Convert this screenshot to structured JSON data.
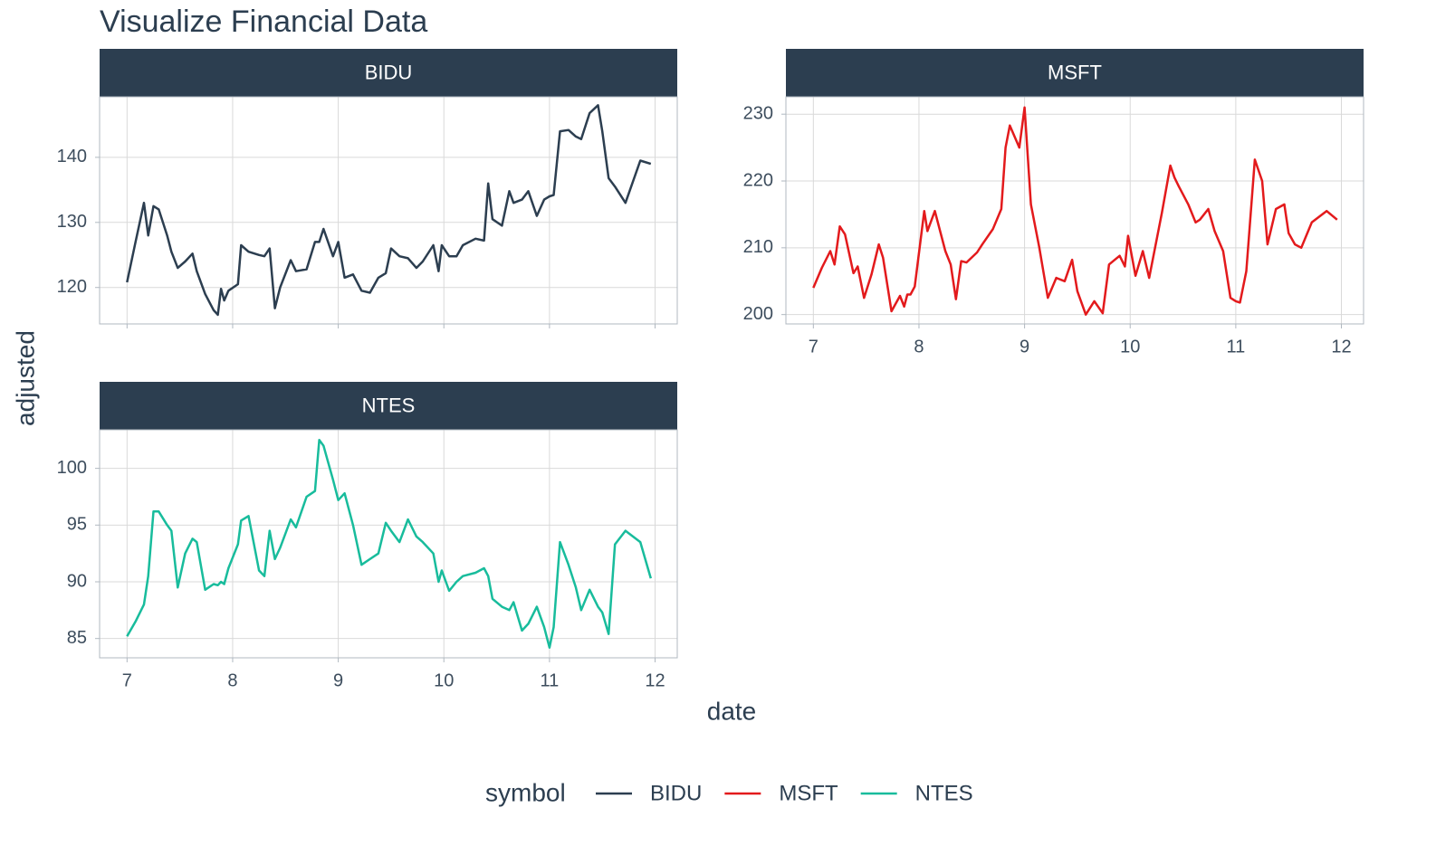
{
  "chart_data": {
    "type": "line",
    "title": "Visualize Financial Data",
    "x_label": "date",
    "y_label": "adjusted",
    "legend_title": "symbol",
    "grid": true,
    "xlim": [
      6.74,
      12.21
    ],
    "xticks": [
      7,
      8,
      9,
      10,
      11,
      12
    ],
    "x": [
      7.0,
      7.08,
      7.16,
      7.2,
      7.25,
      7.3,
      7.38,
      7.42,
      7.48,
      7.55,
      7.62,
      7.66,
      7.74,
      7.82,
      7.86,
      7.89,
      7.92,
      7.96,
      8.05,
      8.08,
      8.15,
      8.25,
      8.3,
      8.35,
      8.4,
      8.45,
      8.55,
      8.6,
      8.7,
      8.78,
      8.82,
      8.86,
      8.95,
      9.0,
      9.06,
      9.14,
      9.22,
      9.3,
      9.38,
      9.45,
      9.5,
      9.58,
      9.66,
      9.74,
      9.8,
      9.9,
      9.95,
      9.98,
      10.05,
      10.12,
      10.18,
      10.3,
      10.38,
      10.42,
      10.46,
      10.55,
      10.62,
      10.66,
      10.74,
      10.8,
      10.88,
      10.95,
      11.0,
      11.04,
      11.1,
      11.18,
      11.25,
      11.3,
      11.38,
      11.46,
      11.5,
      11.56,
      11.62,
      11.72,
      11.86,
      11.96
    ],
    "series": [
      {
        "name": "BIDU",
        "color": "#2c3e50",
        "ylim": [
          114.4,
          149.3
        ],
        "yticks": [
          120,
          130,
          140
        ],
        "values": [
          120.8,
          127,
          133,
          128,
          132.5,
          132,
          128,
          125.5,
          123,
          124,
          125.2,
          122.5,
          119,
          116.5,
          115.8,
          119.8,
          118,
          119.5,
          120.5,
          126.5,
          125.5,
          125,
          124.8,
          126,
          116.8,
          120,
          124.2,
          122.5,
          122.8,
          127,
          127,
          129,
          124.8,
          127,
          121.5,
          122,
          119.5,
          119.2,
          121.5,
          122.2,
          126,
          124.8,
          124.5,
          123,
          124,
          126.5,
          122.5,
          126.5,
          124.8,
          124.8,
          126.5,
          127.5,
          127.2,
          136,
          130.5,
          129.5,
          134.8,
          133,
          133.5,
          134.8,
          131,
          133.5,
          134,
          134.2,
          144,
          144.2,
          143.2,
          142.8,
          146.8,
          148,
          144,
          136.8,
          135.5,
          133,
          139.5,
          139
        ]
      },
      {
        "name": "MSFT",
        "color": "#e31a1c",
        "ylim": [
          198.6,
          232.6
        ],
        "yticks": [
          200,
          210,
          220,
          230
        ],
        "values": [
          204,
          207,
          209.5,
          207.5,
          213.2,
          212,
          206.2,
          207.2,
          202.5,
          206,
          210.5,
          208.5,
          200.5,
          202.8,
          201.2,
          203,
          203,
          204.2,
          215.5,
          212.5,
          215.5,
          209.5,
          207.5,
          202.3,
          208,
          207.8,
          209.3,
          210.5,
          212.8,
          215.8,
          225,
          228.3,
          225,
          231,
          216.5,
          210,
          202.5,
          205.5,
          205,
          208.2,
          203.5,
          200,
          202,
          200.2,
          207.5,
          208.8,
          207.2,
          211.8,
          205.8,
          209.5,
          205.5,
          215.2,
          222.3,
          220.5,
          219.2,
          216.5,
          213.8,
          214.2,
          215.8,
          212.5,
          209.5,
          202.5,
          202,
          201.8,
          206.5,
          223.2,
          220,
          210.5,
          215.8,
          216.5,
          212.2,
          210.5,
          210,
          213.8,
          215.5,
          214.2
        ]
      },
      {
        "name": "NTES",
        "color": "#18bc9c",
        "ylim": [
          83.3,
          103.4
        ],
        "yticks": [
          85,
          90,
          95,
          100
        ],
        "values": [
          85.2,
          86.5,
          88,
          90.5,
          96.2,
          96.2,
          95,
          94.5,
          89.5,
          92.5,
          93.8,
          93.5,
          89.3,
          89.8,
          89.7,
          90,
          89.8,
          91.2,
          93.3,
          95.4,
          95.8,
          91,
          90.5,
          94.5,
          92,
          93,
          95.5,
          94.8,
          97.5,
          98,
          102.5,
          102,
          99,
          97.2,
          97.8,
          95,
          91.5,
          92,
          92.5,
          95.2,
          94.5,
          93.5,
          95.5,
          94,
          93.5,
          92.5,
          90,
          91,
          89.2,
          90,
          90.5,
          90.8,
          91.2,
          90.5,
          88.5,
          87.8,
          87.5,
          88.2,
          85.7,
          86.3,
          87.8,
          86,
          84.2,
          86,
          93.5,
          91.5,
          89.5,
          87.5,
          89.3,
          87.8,
          87.3,
          85.4,
          93.3,
          94.5,
          93.5,
          90.3
        ]
      }
    ]
  }
}
